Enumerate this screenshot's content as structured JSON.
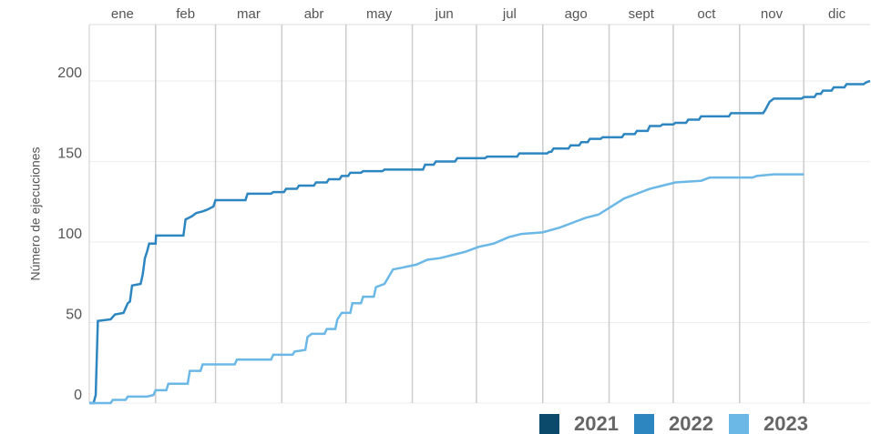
{
  "chart_data": {
    "type": "line",
    "ylabel": "Número de ejecuciones",
    "categories": [
      "ene",
      "feb",
      "mar",
      "abr",
      "may",
      "jun",
      "jul",
      "ago",
      "sept",
      "oct",
      "nov",
      "dic"
    ],
    "xlim": [
      0,
      365
    ],
    "xticks": [
      31,
      59,
      90,
      120,
      151,
      181,
      212,
      243,
      273,
      304,
      334
    ],
    "ylim": [
      0,
      235
    ],
    "yticks": [
      0,
      50,
      100,
      150,
      200
    ],
    "grid": true,
    "legend": "bottom-right",
    "series": [
      {
        "name": "2021",
        "color": "#0b4a6b",
        "x": [],
        "values": []
      },
      {
        "name": "2022",
        "color": "#2e86c1",
        "x": [
          0,
          2,
          3,
          4,
          10,
          12,
          16,
          17,
          18,
          19,
          20,
          24,
          25,
          26,
          27,
          28,
          31,
          31.2,
          44,
          45,
          48,
          50,
          53,
          55,
          58,
          59,
          73,
          74,
          85,
          86,
          91,
          92,
          97,
          98,
          105,
          106,
          111,
          112,
          117,
          118,
          121,
          122,
          127,
          128,
          137,
          138,
          156,
          157,
          161,
          162,
          171,
          172,
          185,
          186,
          200,
          201,
          214,
          215,
          216,
          217,
          224,
          225,
          229,
          230,
          233,
          234,
          239,
          240,
          249,
          250,
          255,
          256,
          261,
          262,
          267,
          268,
          273,
          274,
          279,
          280,
          285,
          286,
          299,
          300,
          315,
          316,
          318,
          320,
          333,
          334,
          339,
          340,
          342,
          343,
          347,
          348,
          353,
          354,
          362,
          363,
          365
        ],
        "values": [
          0,
          0,
          5,
          51,
          52,
          55,
          56,
          59,
          62,
          63,
          73,
          74,
          80,
          90,
          94,
          99,
          99,
          104,
          104,
          114,
          116,
          118,
          119,
          120,
          122,
          126,
          126,
          130,
          130,
          131,
          131,
          133,
          133,
          135,
          135,
          137,
          137,
          139,
          139,
          141,
          141,
          143,
          143,
          144,
          144,
          145,
          145,
          148,
          148,
          150,
          150,
          152,
          152,
          153,
          153,
          155,
          155,
          156,
          156,
          158,
          158,
          160,
          160,
          162,
          162,
          164,
          164,
          165,
          165,
          167,
          167,
          169,
          169,
          172,
          172,
          173,
          173,
          174,
          174,
          176,
          176,
          178,
          178,
          180,
          180,
          182,
          187,
          189,
          189,
          190,
          190,
          192,
          192,
          194,
          194,
          196,
          196,
          198,
          198,
          199,
          200
        ]
      },
      {
        "name": "2023",
        "color": "#6bb8e6",
        "x": [
          0,
          10,
          11,
          17,
          18,
          27,
          30,
          31,
          36,
          37,
          46,
          47,
          52,
          53,
          68,
          69,
          85,
          86,
          95,
          96,
          101,
          102,
          104,
          110,
          111,
          115,
          116,
          118,
          122,
          123,
          127,
          128,
          133,
          134,
          138,
          142,
          146,
          153,
          158,
          164,
          170,
          176,
          182,
          189,
          196,
          202,
          212,
          220,
          226,
          232,
          238,
          244,
          250,
          256,
          262,
          268,
          274,
          286,
          290,
          310,
          312,
          320,
          334
        ],
        "values": [
          0,
          0,
          2,
          2,
          4,
          4,
          5,
          8,
          8,
          12,
          12,
          20,
          20,
          24,
          24,
          27,
          27,
          30,
          30,
          32,
          33,
          41,
          43,
          43,
          46,
          46,
          52,
          56,
          56,
          62,
          62,
          66,
          66,
          72,
          74,
          83,
          84,
          86,
          89,
          90,
          92,
          94,
          97,
          99,
          103,
          105,
          106,
          109,
          112,
          115,
          117,
          122,
          127,
          130,
          133,
          135,
          137,
          138,
          140,
          140,
          141,
          142,
          142
        ]
      }
    ]
  }
}
